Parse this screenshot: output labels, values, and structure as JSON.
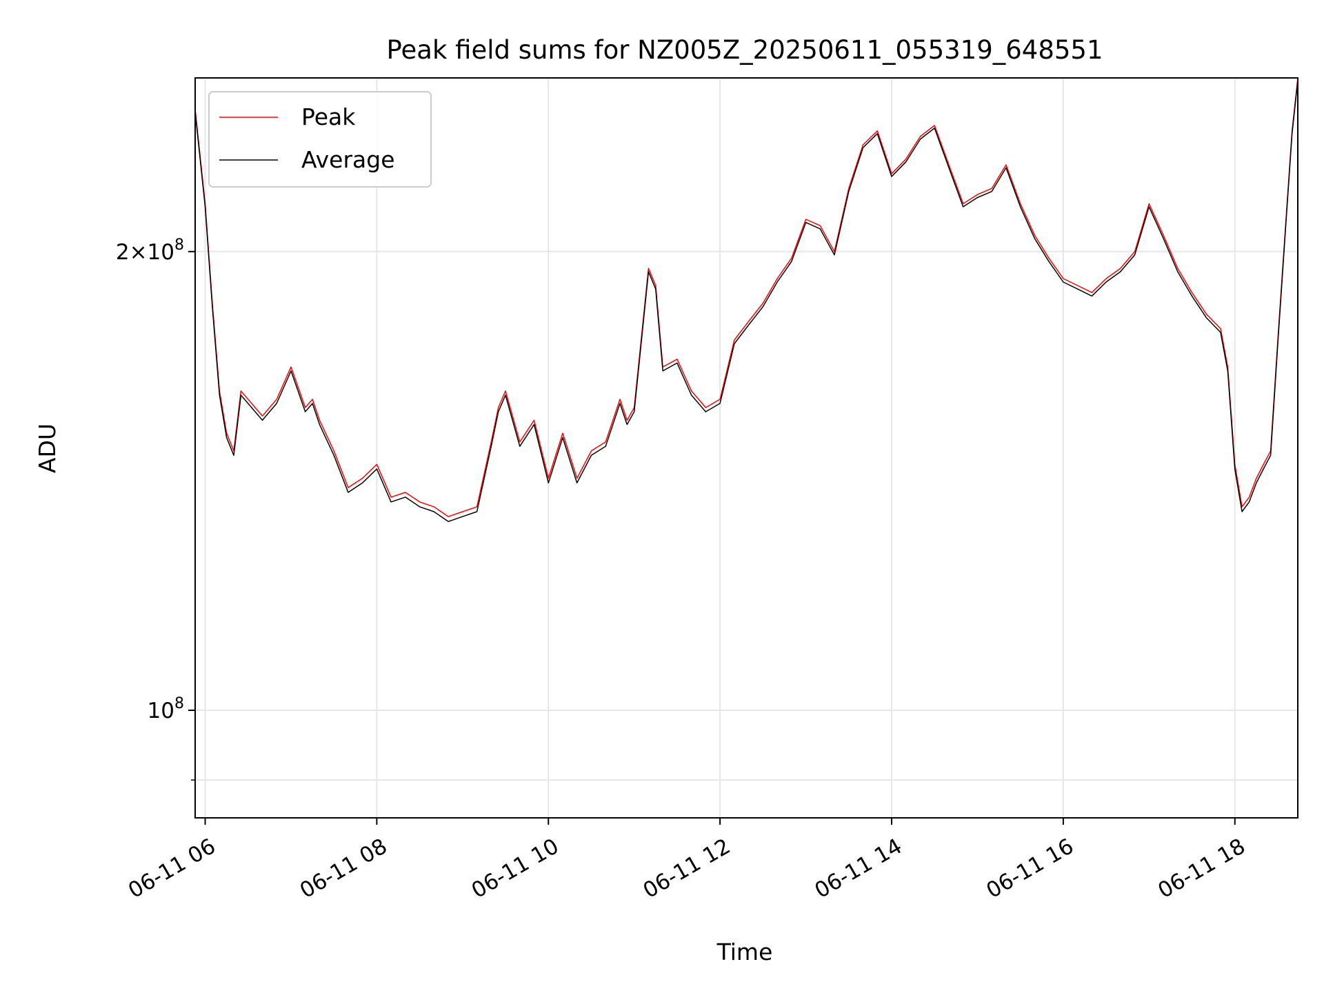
{
  "chart_data": {
    "type": "line",
    "title": "Peak field sums for NZ005Z_20250611_055319_648551",
    "xlabel": "Time",
    "ylabel": "ADU",
    "y_scale": "log",
    "xlim": [
      "2025-06-11 05:53",
      "2025-06-11 18:44"
    ],
    "ylim": [
      85000000,
      260000000
    ],
    "x_ticks": [
      "2025-06-11 06:00",
      "2025-06-11 08:00",
      "2025-06-11 10:00",
      "2025-06-11 12:00",
      "2025-06-11 14:00",
      "2025-06-11 16:00",
      "2025-06-11 18:00"
    ],
    "x_tick_labels": [
      "06-11 06",
      "06-11 08",
      "06-11 10",
      "06-11 12",
      "06-11 14",
      "06-11 16",
      "06-11 18"
    ],
    "y_tick_labels": [
      {
        "value": 200000000,
        "label": "2×10^8"
      },
      {
        "value": 100000000,
        "label": "10^8"
      }
    ],
    "grid": true,
    "legend_position": "upper left",
    "series": [
      {
        "name": "Peak",
        "color": "#ff0000",
        "x": [
          "05:53",
          "06:00",
          "06:05",
          "06:10",
          "06:15",
          "06:20",
          "06:25",
          "06:30",
          "06:40",
          "06:50",
          "07:00",
          "07:10",
          "07:15",
          "07:20",
          "07:30",
          "07:40",
          "07:50",
          "08:00",
          "08:10",
          "08:20",
          "08:30",
          "08:40",
          "08:50",
          "09:00",
          "09:10",
          "09:20",
          "09:25",
          "09:30",
          "09:40",
          "09:50",
          "10:00",
          "10:10",
          "10:20",
          "10:30",
          "10:40",
          "10:50",
          "10:55",
          "11:00",
          "11:10",
          "11:15",
          "11:20",
          "11:30",
          "11:40",
          "11:50",
          "12:00",
          "12:10",
          "12:20",
          "12:30",
          "12:40",
          "12:50",
          "13:00",
          "13:10",
          "13:20",
          "13:30",
          "13:40",
          "13:50",
          "14:00",
          "14:10",
          "14:20",
          "14:30",
          "14:40",
          "14:50",
          "15:00",
          "15:10",
          "15:20",
          "15:30",
          "15:40",
          "15:50",
          "16:00",
          "16:10",
          "16:20",
          "16:30",
          "16:40",
          "16:50",
          "17:00",
          "17:10",
          "17:20",
          "17:30",
          "17:40",
          "17:50",
          "17:55",
          "18:00",
          "18:05",
          "18:10",
          "18:15",
          "18:20",
          "18:25",
          "18:30",
          "18:35",
          "18:40",
          "18:44"
        ],
        "values": [
          248000000,
          215000000,
          185000000,
          162000000,
          152000000,
          148000000,
          162000000,
          160000000,
          156000000,
          160000000,
          168000000,
          158000000,
          160000000,
          155000000,
          148000000,
          140000000,
          142000000,
          145000000,
          138000000,
          139000000,
          137000000,
          136000000,
          134000000,
          135000000,
          136000000,
          150000000,
          158000000,
          162000000,
          150000000,
          155000000,
          142000000,
          152000000,
          142000000,
          148000000,
          150000000,
          160000000,
          155000000,
          158000000,
          195000000,
          190000000,
          168000000,
          170000000,
          162000000,
          158000000,
          160000000,
          175000000,
          180000000,
          185000000,
          192000000,
          198000000,
          210000000,
          208000000,
          200000000,
          220000000,
          235000000,
          240000000,
          225000000,
          230000000,
          238000000,
          242000000,
          228000000,
          215000000,
          218000000,
          220000000,
          228000000,
          215000000,
          205000000,
          198000000,
          192000000,
          190000000,
          188000000,
          192000000,
          195000000,
          200000000,
          215000000,
          205000000,
          195000000,
          188000000,
          182000000,
          178000000,
          168000000,
          145000000,
          136000000,
          138000000,
          142000000,
          145000000,
          148000000,
          175000000,
          205000000,
          240000000,
          260000000
        ]
      },
      {
        "name": "Average",
        "color": "#000000",
        "x": [
          "05:53",
          "06:00",
          "06:05",
          "06:10",
          "06:15",
          "06:20",
          "06:25",
          "06:30",
          "06:40",
          "06:50",
          "07:00",
          "07:10",
          "07:15",
          "07:20",
          "07:30",
          "07:40",
          "07:50",
          "08:00",
          "08:10",
          "08:20",
          "08:30",
          "08:40",
          "08:50",
          "09:00",
          "09:10",
          "09:20",
          "09:25",
          "09:30",
          "09:40",
          "09:50",
          "10:00",
          "10:10",
          "10:20",
          "10:30",
          "10:40",
          "10:50",
          "10:55",
          "11:00",
          "11:10",
          "11:15",
          "11:20",
          "11:30",
          "11:40",
          "11:50",
          "12:00",
          "12:10",
          "12:20",
          "12:30",
          "12:40",
          "12:50",
          "13:00",
          "13:10",
          "13:20",
          "13:30",
          "13:40",
          "13:50",
          "14:00",
          "14:10",
          "14:20",
          "14:30",
          "14:40",
          "14:50",
          "15:00",
          "15:10",
          "15:20",
          "15:30",
          "15:40",
          "15:50",
          "16:00",
          "16:10",
          "16:20",
          "16:30",
          "16:40",
          "16:50",
          "17:00",
          "17:10",
          "17:20",
          "17:30",
          "17:40",
          "17:50",
          "17:55",
          "18:00",
          "18:05",
          "18:10",
          "18:15",
          "18:20",
          "18:25",
          "18:30",
          "18:35",
          "18:40",
          "18:44"
        ],
        "values": [
          247000000,
          214000000,
          184000000,
          161000000,
          151000000,
          147000000,
          161000000,
          159000000,
          155000000,
          159000000,
          167000000,
          157000000,
          159000000,
          154000000,
          147000000,
          139000000,
          141000000,
          144000000,
          137000000,
          138000000,
          136000000,
          135000000,
          133000000,
          134000000,
          135000000,
          149000000,
          157000000,
          161000000,
          149000000,
          154000000,
          141000000,
          151000000,
          141000000,
          147000000,
          149000000,
          159000000,
          154000000,
          157000000,
          194000000,
          189000000,
          167000000,
          169000000,
          161000000,
          157000000,
          159000000,
          174000000,
          179000000,
          184000000,
          191000000,
          197000000,
          209000000,
          207000000,
          199000000,
          219000000,
          234000000,
          239000000,
          224000000,
          229000000,
          237000000,
          241000000,
          227000000,
          214000000,
          217000000,
          219000000,
          227000000,
          214000000,
          204000000,
          197000000,
          191000000,
          189000000,
          187000000,
          191000000,
          194000000,
          199000000,
          214000000,
          204000000,
          194000000,
          187000000,
          181000000,
          177000000,
          167000000,
          144000000,
          135000000,
          137000000,
          141000000,
          144000000,
          147000000,
          174000000,
          204000000,
          239000000,
          259000000
        ]
      }
    ]
  },
  "colors": {
    "peak": "#ff0000",
    "average": "#000000",
    "grid": "#e6e6e6",
    "axes": "#000000"
  }
}
